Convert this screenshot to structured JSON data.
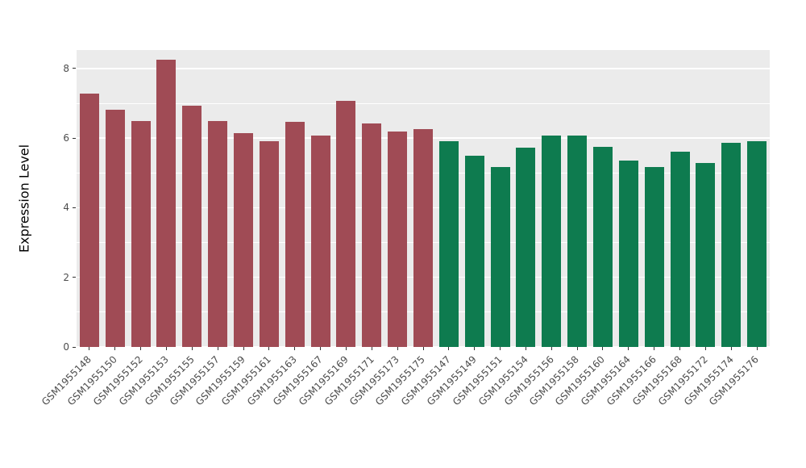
{
  "figure": {
    "background": "#FFFFFF",
    "panel_background": "#EBEBEB",
    "grid_color": "#FFFFFF",
    "axis_text_color": "#4D4D4D",
    "axis_title_color": "#000000"
  },
  "chart_data": {
    "type": "bar",
    "title": "",
    "xlabel": "",
    "ylabel": "Expression Level",
    "ylim": [
      0,
      8.53
    ],
    "yticks": [
      0,
      2,
      4,
      6,
      8
    ],
    "yticks_minor": [
      1,
      3,
      5,
      7
    ],
    "grid": "white major and minor horizontal lines on gray panel",
    "legend": "none",
    "categories": [
      "GSM1955148",
      "GSM1955150",
      "GSM1955152",
      "GSM1955153",
      "GSM1955155",
      "GSM1955157",
      "GSM1955159",
      "GSM1955161",
      "GSM1955163",
      "GSM1955167",
      "GSM1955169",
      "GSM1955171",
      "GSM1955173",
      "GSM1955175",
      "GSM1955147",
      "GSM1955149",
      "GSM1955151",
      "GSM1955154",
      "GSM1955156",
      "GSM1955158",
      "GSM1955160",
      "GSM1955164",
      "GSM1955166",
      "GSM1955168",
      "GSM1955172",
      "GSM1955174",
      "GSM1955176"
    ],
    "values": [
      7.27,
      6.82,
      6.5,
      8.25,
      6.92,
      6.48,
      6.15,
      5.92,
      6.47,
      6.08,
      7.07,
      6.42,
      6.2,
      6.27,
      5.92,
      5.5,
      5.16,
      5.72,
      6.08,
      6.07,
      5.76,
      5.35,
      5.16,
      5.62,
      5.28,
      5.86,
      5.92
    ],
    "groups": [
      "red",
      "red",
      "red",
      "red",
      "red",
      "red",
      "red",
      "red",
      "red",
      "red",
      "red",
      "red",
      "red",
      "red",
      "green",
      "green",
      "green",
      "green",
      "green",
      "green",
      "green",
      "green",
      "green",
      "green",
      "green",
      "green",
      "green"
    ],
    "group_colors": {
      "red": "#A04B55",
      "green": "#0E7B4F"
    }
  }
}
